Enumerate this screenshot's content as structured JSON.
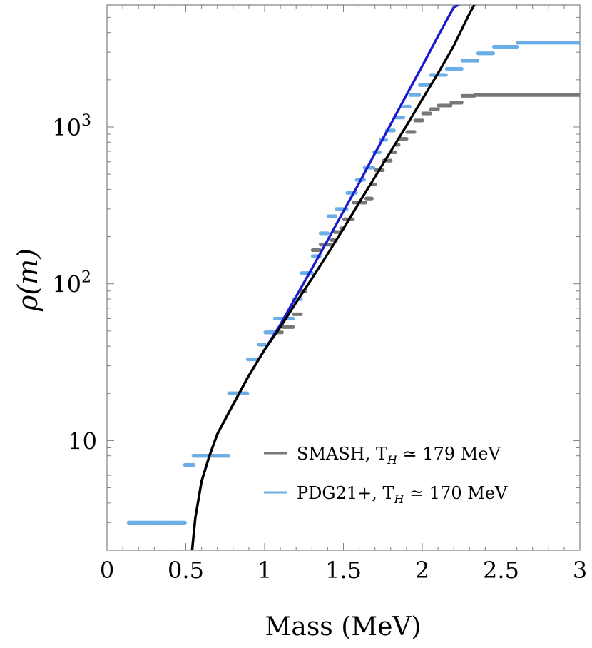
{
  "chart_data": {
    "type": "scatter",
    "xlabel": "Mass (MeV)",
    "ylabel": "ρ(m)",
    "xlim": [
      0,
      3
    ],
    "ylim": [
      2,
      6000
    ],
    "yscale": "log",
    "x_ticks": [
      {
        "value": 0,
        "label": "0"
      },
      {
        "value": 0.5,
        "label": "0.5"
      },
      {
        "value": 1,
        "label": "1"
      },
      {
        "value": 1.5,
        "label": "1.5"
      },
      {
        "value": 2,
        "label": "2"
      },
      {
        "value": 2.5,
        "label": "2.5"
      },
      {
        "value": 3,
        "label": "3"
      }
    ],
    "y_ticks": [
      {
        "value": 10,
        "label": "10"
      },
      {
        "value": 100,
        "label": "10",
        "superscript": "2"
      },
      {
        "value": 1000,
        "label": "10",
        "superscript": "3"
      }
    ],
    "grid": false,
    "legend_position": "bottom-right",
    "legend": [
      {
        "label": "SMASH, T",
        "subscript": "H",
        "rest": " ≃ 179 MeV",
        "color": "#777777"
      },
      {
        "label": "PDG21+, T",
        "subscript": "H",
        "rest": " ≃ 170 MeV",
        "color": "#6aaee8"
      }
    ],
    "series": [
      {
        "name": "SMASH, T_H ≃ 179 MeV",
        "kind": "steps",
        "color": "#777777",
        "points": [
          [
            0.138,
            3
          ],
          [
            0.494,
            3
          ],
          [
            0.495,
            7
          ],
          [
            0.548,
            7
          ],
          [
            0.549,
            8
          ],
          [
            0.77,
            8
          ],
          [
            0.775,
            20
          ],
          [
            0.89,
            20
          ],
          [
            0.895,
            33
          ],
          [
            0.96,
            33
          ],
          [
            0.965,
            41
          ],
          [
            1.0,
            41
          ],
          [
            1.005,
            49
          ],
          [
            1.11,
            49
          ],
          [
            1.115,
            53
          ],
          [
            1.18,
            53
          ],
          [
            1.185,
            64
          ],
          [
            1.23,
            64
          ],
          [
            1.235,
            90
          ],
          [
            1.26,
            90
          ],
          [
            1.265,
            117
          ],
          [
            1.3,
            117
          ],
          [
            1.305,
            164
          ],
          [
            1.35,
            164
          ],
          [
            1.355,
            178
          ],
          [
            1.42,
            178
          ],
          [
            1.425,
            190
          ],
          [
            1.44,
            190
          ],
          [
            1.445,
            214
          ],
          [
            1.48,
            214
          ],
          [
            1.485,
            226
          ],
          [
            1.5,
            226
          ],
          [
            1.505,
            258
          ],
          [
            1.56,
            258
          ],
          [
            1.565,
            330
          ],
          [
            1.64,
            330
          ],
          [
            1.645,
            350
          ],
          [
            1.68,
            350
          ],
          [
            1.685,
            430
          ],
          [
            1.7,
            430
          ],
          [
            1.705,
            530
          ],
          [
            1.75,
            530
          ],
          [
            1.755,
            610
          ],
          [
            1.8,
            610
          ],
          [
            1.805,
            690
          ],
          [
            1.83,
            690
          ],
          [
            1.835,
            770
          ],
          [
            1.85,
            770
          ],
          [
            1.855,
            840
          ],
          [
            1.9,
            840
          ],
          [
            1.905,
            930
          ],
          [
            1.95,
            930
          ],
          [
            1.955,
            1100
          ],
          [
            2.0,
            1100
          ],
          [
            2.005,
            1220
          ],
          [
            2.05,
            1220
          ],
          [
            2.055,
            1300
          ],
          [
            2.1,
            1300
          ],
          [
            2.105,
            1370
          ],
          [
            2.18,
            1370
          ],
          [
            2.185,
            1430
          ],
          [
            2.25,
            1430
          ],
          [
            2.255,
            1580
          ],
          [
            2.33,
            1580
          ],
          [
            2.335,
            1600
          ],
          [
            3.0,
            1600
          ]
        ]
      },
      {
        "name": "PDG21+, T_H ≃ 170 MeV",
        "kind": "steps",
        "color": "#6aaee8",
        "points": [
          [
            0.138,
            3
          ],
          [
            0.494,
            3
          ],
          [
            0.495,
            7
          ],
          [
            0.548,
            7
          ],
          [
            0.549,
            8
          ],
          [
            0.77,
            8
          ],
          [
            0.775,
            20
          ],
          [
            0.89,
            20
          ],
          [
            0.895,
            33
          ],
          [
            0.96,
            33
          ],
          [
            0.965,
            41
          ],
          [
            1.0,
            41
          ],
          [
            1.005,
            49
          ],
          [
            1.06,
            49
          ],
          [
            1.065,
            60
          ],
          [
            1.18,
            60
          ],
          [
            1.185,
            80
          ],
          [
            1.23,
            80
          ],
          [
            1.235,
            117
          ],
          [
            1.3,
            117
          ],
          [
            1.305,
            150
          ],
          [
            1.35,
            150
          ],
          [
            1.355,
            210
          ],
          [
            1.4,
            210
          ],
          [
            1.405,
            270
          ],
          [
            1.45,
            270
          ],
          [
            1.455,
            300
          ],
          [
            1.52,
            300
          ],
          [
            1.525,
            380
          ],
          [
            1.58,
            380
          ],
          [
            1.585,
            460
          ],
          [
            1.63,
            460
          ],
          [
            1.635,
            550
          ],
          [
            1.69,
            550
          ],
          [
            1.695,
            690
          ],
          [
            1.73,
            690
          ],
          [
            1.735,
            830
          ],
          [
            1.77,
            830
          ],
          [
            1.775,
            950
          ],
          [
            1.82,
            950
          ],
          [
            1.825,
            1150
          ],
          [
            1.88,
            1150
          ],
          [
            1.885,
            1350
          ],
          [
            1.92,
            1350
          ],
          [
            1.925,
            1600
          ],
          [
            1.98,
            1600
          ],
          [
            1.985,
            1850
          ],
          [
            2.05,
            1850
          ],
          [
            2.055,
            2150
          ],
          [
            2.15,
            2150
          ],
          [
            2.155,
            2350
          ],
          [
            2.25,
            2350
          ],
          [
            2.255,
            2650
          ],
          [
            2.35,
            2650
          ],
          [
            2.355,
            2950
          ],
          [
            2.45,
            2950
          ],
          [
            2.455,
            3250
          ],
          [
            2.6,
            3250
          ],
          [
            2.605,
            3450
          ],
          [
            3.0,
            3450
          ]
        ]
      },
      {
        "name": "",
        "kind": "curve",
        "color": "#1a1ad0",
        "points": [
          [
            0.54,
            2
          ],
          [
            0.56,
            3.2
          ],
          [
            0.6,
            5.5
          ],
          [
            0.65,
            8
          ],
          [
            0.7,
            11
          ],
          [
            0.8,
            17
          ],
          [
            0.9,
            26
          ],
          [
            1.0,
            38
          ],
          [
            1.1,
            55
          ],
          [
            1.2,
            83
          ],
          [
            1.3,
            125
          ],
          [
            1.4,
            190
          ],
          [
            1.5,
            290
          ],
          [
            1.6,
            440
          ],
          [
            1.7,
            680
          ],
          [
            1.8,
            1040
          ],
          [
            1.9,
            1600
          ],
          [
            2.0,
            2450
          ],
          [
            2.1,
            3800
          ],
          [
            2.2,
            5800
          ],
          [
            2.23,
            6000
          ]
        ]
      },
      {
        "name": "",
        "kind": "curve",
        "color": "#000000",
        "points": [
          [
            0.54,
            2
          ],
          [
            0.56,
            3.2
          ],
          [
            0.6,
            5.5
          ],
          [
            0.65,
            8
          ],
          [
            0.7,
            11
          ],
          [
            0.8,
            17
          ],
          [
            0.9,
            26
          ],
          [
            1.0,
            38
          ],
          [
            1.1,
            53
          ],
          [
            1.2,
            76
          ],
          [
            1.3,
            108
          ],
          [
            1.4,
            155
          ],
          [
            1.5,
            225
          ],
          [
            1.6,
            330
          ],
          [
            1.7,
            480
          ],
          [
            1.8,
            700
          ],
          [
            1.9,
            1020
          ],
          [
            2.0,
            1500
          ],
          [
            2.1,
            2200
          ],
          [
            2.2,
            3300
          ],
          [
            2.3,
            5300
          ],
          [
            2.33,
            6000
          ]
        ]
      }
    ]
  }
}
